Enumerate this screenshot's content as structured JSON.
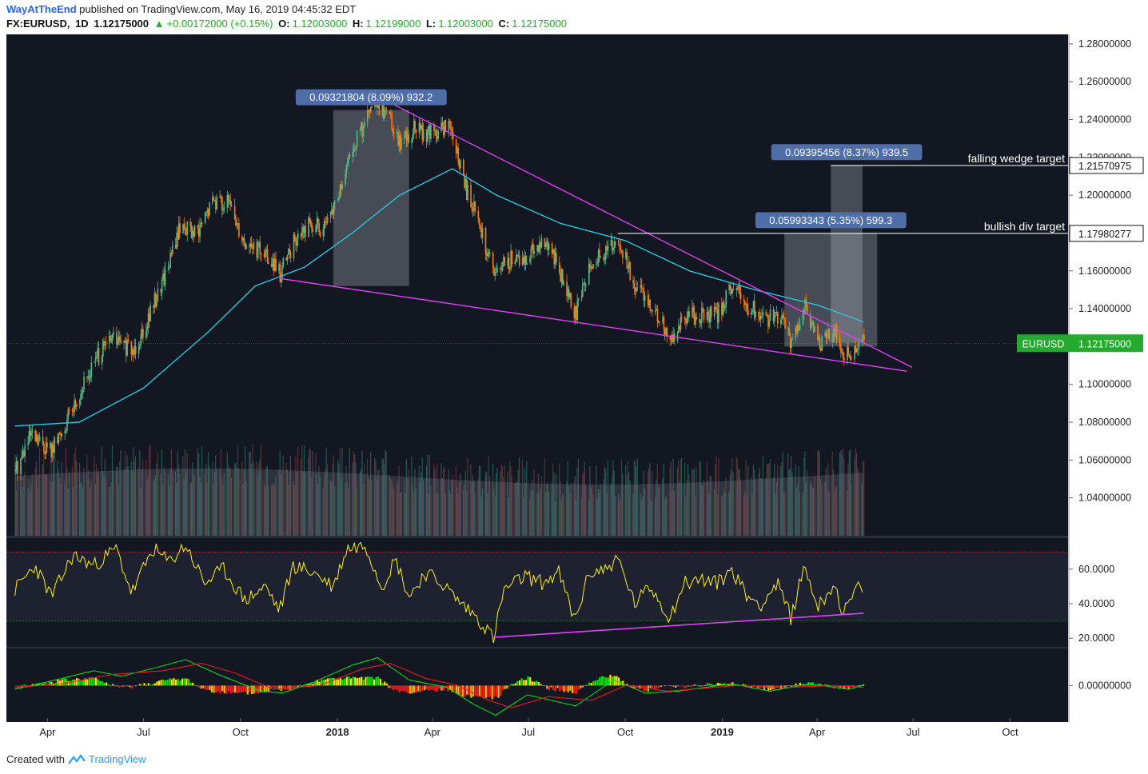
{
  "header": {
    "author": "WayAtTheEnd",
    "published_text": "published on TradingView.com, May 16, 2019 04:45:32 EDT",
    "symbol": "FX:EURUSD,",
    "interval": "1D",
    "last": "1.12175000",
    "change": "+0.00172000 (+0.15%)",
    "o_label": "O:",
    "o_value": "1.12003000",
    "h_label": "H:",
    "h_value": "1.12199000",
    "l_label": "L:",
    "l_value": "1.12003000",
    "c_label": "C:",
    "c_value": "1.12175000"
  },
  "footer": {
    "created_text": "Created with",
    "brand": "TradingView"
  },
  "colors": {
    "background": "#131722",
    "up": "#53b987",
    "down": "#f57f17",
    "ma": "#26c6da",
    "trendline": "#e040fb",
    "rsi": "#fff200",
    "macd": "#00e600",
    "signal": "#ff1a1a",
    "price_tag": "#22ab2c",
    "label_box": "#4f6ea8"
  },
  "chart_data": {
    "type": "candlestick",
    "symbol": "EURUSD",
    "interval": "1D",
    "last_price": "1.12175000",
    "price_axis": {
      "range": [
        1.02,
        1.285
      ],
      "ticks": [
        "1.28000000",
        "1.26000000",
        "1.24000000",
        "1.22000000",
        "1.20000000",
        "1.18000000",
        "1.16000000",
        "1.14000000",
        "1.12000000",
        "1.10000000",
        "1.08000000",
        "1.06000000",
        "1.04000000"
      ]
    },
    "time_axis": {
      "labels": [
        "Apr",
        "Jul",
        "Oct",
        "2018",
        "Apr",
        "Jul",
        "Oct",
        "2019",
        "Apr",
        "Jul",
        "Oct"
      ],
      "bold": [
        "2018",
        "2019"
      ]
    },
    "price_path": [
      [
        "2017-03-01",
        1.055
      ],
      [
        "2017-03-15",
        1.072
      ],
      [
        "2017-04-05",
        1.065
      ],
      [
        "2017-04-25",
        1.088
      ],
      [
        "2017-05-15",
        1.112
      ],
      [
        "2017-06-01",
        1.125
      ],
      [
        "2017-06-20",
        1.117
      ],
      [
        "2017-07-10",
        1.142
      ],
      [
        "2017-07-25",
        1.165
      ],
      [
        "2017-08-05",
        1.185
      ],
      [
        "2017-08-20",
        1.178
      ],
      [
        "2017-09-05",
        1.198
      ],
      [
        "2017-09-20",
        1.195
      ],
      [
        "2017-10-05",
        1.175
      ],
      [
        "2017-10-25",
        1.168
      ],
      [
        "2017-11-07",
        1.158
      ],
      [
        "2017-11-20",
        1.175
      ],
      [
        "2017-12-05",
        1.185
      ],
      [
        "2017-12-20",
        1.182
      ],
      [
        "2018-01-05",
        1.205
      ],
      [
        "2018-01-15",
        1.225
      ],
      [
        "2018-02-01",
        1.245
      ],
      [
        "2018-02-16",
        1.246
      ],
      [
        "2018-03-01",
        1.228
      ],
      [
        "2018-03-15",
        1.235
      ],
      [
        "2018-04-01",
        1.232
      ],
      [
        "2018-04-17",
        1.237
      ],
      [
        "2018-05-01",
        1.205
      ],
      [
        "2018-05-15",
        1.185
      ],
      [
        "2018-05-29",
        1.158
      ],
      [
        "2018-06-14",
        1.166
      ],
      [
        "2018-06-28",
        1.168
      ],
      [
        "2018-07-10",
        1.174
      ],
      [
        "2018-07-25",
        1.168
      ],
      [
        "2018-08-14",
        1.137
      ],
      [
        "2018-08-28",
        1.165
      ],
      [
        "2018-09-12",
        1.168
      ],
      [
        "2018-09-24",
        1.178
      ],
      [
        "2018-10-09",
        1.152
      ],
      [
        "2018-10-25",
        1.143
      ],
      [
        "2018-11-12",
        1.124
      ],
      [
        "2018-11-26",
        1.135
      ],
      [
        "2018-12-10",
        1.137
      ],
      [
        "2018-12-26",
        1.136
      ],
      [
        "2019-01-10",
        1.152
      ],
      [
        "2019-01-25",
        1.141
      ],
      [
        "2019-02-10",
        1.135
      ],
      [
        "2019-02-25",
        1.136
      ],
      [
        "2019-03-08",
        1.121
      ],
      [
        "2019-03-20",
        1.14
      ],
      [
        "2019-04-02",
        1.121
      ],
      [
        "2019-04-17",
        1.128
      ],
      [
        "2019-04-26",
        1.114
      ],
      [
        "2019-05-15",
        1.122
      ]
    ],
    "moving_average": [
      [
        "2017-03-01",
        1.078
      ],
      [
        "2017-05-01",
        1.08
      ],
      [
        "2017-07-01",
        1.098
      ],
      [
        "2017-09-01",
        1.128
      ],
      [
        "2017-10-15",
        1.152
      ],
      [
        "2017-12-01",
        1.162
      ],
      [
        "2018-01-15",
        1.18
      ],
      [
        "2018-03-01",
        1.2
      ],
      [
        "2018-04-20",
        1.214
      ],
      [
        "2018-06-01",
        1.2
      ],
      [
        "2018-08-01",
        1.185
      ],
      [
        "2018-10-01",
        1.176
      ],
      [
        "2018-12-01",
        1.16
      ],
      [
        "2019-02-01",
        1.15
      ],
      [
        "2019-04-01",
        1.142
      ],
      [
        "2019-05-15",
        1.133
      ]
    ],
    "trendlines": [
      {
        "from": [
          "2018-02-16",
          1.25
        ],
        "to": [
          "2019-06-30",
          1.109
        ]
      },
      {
        "from": [
          "2017-11-07",
          1.156
        ],
        "to": [
          "2019-06-25",
          1.107
        ]
      }
    ],
    "measurements": [
      {
        "label": "0.09321804 (8.09%) 932.2",
        "from": "2017-12-28",
        "to": "2018-03-10",
        "low": 1.152,
        "high": 1.245
      },
      {
        "label": "0.05993343 (5.35%) 599.3",
        "from": "2019-03-01",
        "to": "2019-05-28",
        "low": 1.12,
        "high": 1.18
      },
      {
        "label": "0.09395456 (8.37%) 939.5",
        "from": "2019-04-14",
        "to": "2019-05-14",
        "low": 1.122,
        "high": 1.216
      }
    ],
    "target_lines": [
      {
        "label": "falling wedge target",
        "value": 1.2157,
        "tag": "1.21570975",
        "from": "2019-04-14"
      },
      {
        "label": "bullish div target",
        "value": 1.1798,
        "tag": "1.17980277",
        "from": "2018-09-24"
      }
    ],
    "rsi": {
      "levels": [
        70,
        30
      ],
      "ticks": [
        "60.0000",
        "40.0000",
        "20.0000"
      ],
      "range": [
        15,
        78
      ],
      "path": [
        [
          "2017-03-01",
          48
        ],
        [
          "2017-03-20",
          62
        ],
        [
          "2017-04-05",
          44
        ],
        [
          "2017-04-25",
          68
        ],
        [
          "2017-05-15",
          62
        ],
        [
          "2017-06-05",
          72
        ],
        [
          "2017-06-20",
          46
        ],
        [
          "2017-07-10",
          72
        ],
        [
          "2017-07-25",
          64
        ],
        [
          "2017-08-10",
          74
        ],
        [
          "2017-08-28",
          52
        ],
        [
          "2017-09-15",
          60
        ],
        [
          "2017-10-05",
          42
        ],
        [
          "2017-10-25",
          50
        ],
        [
          "2017-11-07",
          36
        ],
        [
          "2017-11-20",
          62
        ],
        [
          "2017-12-10",
          58
        ],
        [
          "2017-12-28",
          50
        ],
        [
          "2018-01-10",
          72
        ],
        [
          "2018-01-28",
          74
        ],
        [
          "2018-02-12",
          50
        ],
        [
          "2018-02-25",
          66
        ],
        [
          "2018-03-10",
          44
        ],
        [
          "2018-03-25",
          58
        ],
        [
          "2018-04-10",
          52
        ],
        [
          "2018-04-25",
          42
        ],
        [
          "2018-05-10",
          34
        ],
        [
          "2018-05-22",
          26
        ],
        [
          "2018-05-29",
          20
        ],
        [
          "2018-06-08",
          48
        ],
        [
          "2018-06-28",
          56
        ],
        [
          "2018-07-15",
          52
        ],
        [
          "2018-07-30",
          58
        ],
        [
          "2018-08-14",
          30
        ],
        [
          "2018-08-28",
          58
        ],
        [
          "2018-09-12",
          60
        ],
        [
          "2018-09-24",
          66
        ],
        [
          "2018-10-10",
          40
        ],
        [
          "2018-10-25",
          50
        ],
        [
          "2018-11-12",
          32
        ],
        [
          "2018-11-26",
          52
        ],
        [
          "2018-12-12",
          54
        ],
        [
          "2018-12-28",
          52
        ],
        [
          "2019-01-10",
          60
        ],
        [
          "2019-01-25",
          44
        ],
        [
          "2019-02-08",
          40
        ],
        [
          "2019-02-22",
          52
        ],
        [
          "2019-03-07",
          32
        ],
        [
          "2019-03-20",
          62
        ],
        [
          "2019-04-02",
          38
        ],
        [
          "2019-04-17",
          52
        ],
        [
          "2019-04-26",
          34
        ],
        [
          "2019-05-08",
          48
        ],
        [
          "2019-05-15",
          50
        ]
      ],
      "divergence": {
        "from": [
          "2018-05-29",
          20.5
        ],
        "to": [
          "2019-05-15",
          34.5
        ]
      }
    },
    "macd": {
      "ticks": [
        "0.00000000"
      ],
      "range": [
        -0.0175,
        0.02
      ],
      "macd_path": [
        [
          "2017-03-01",
          -0.002
        ],
        [
          "2017-04-01",
          0.002
        ],
        [
          "2017-05-15",
          0.008
        ],
        [
          "2017-06-10",
          0.005
        ],
        [
          "2017-07-15",
          0.01
        ],
        [
          "2017-08-10",
          0.014
        ],
        [
          "2017-09-10",
          0.006
        ],
        [
          "2017-10-20",
          -0.003
        ],
        [
          "2017-11-10",
          -0.004
        ],
        [
          "2017-12-10",
          0.002
        ],
        [
          "2018-01-15",
          0.011
        ],
        [
          "2018-02-08",
          0.015
        ],
        [
          "2018-03-10",
          0.003
        ],
        [
          "2018-04-15",
          -0.001
        ],
        [
          "2018-05-10",
          -0.01
        ],
        [
          "2018-05-31",
          -0.016
        ],
        [
          "2018-06-30",
          -0.005
        ],
        [
          "2018-08-15",
          -0.011
        ],
        [
          "2018-09-20",
          0.003
        ],
        [
          "2018-10-20",
          -0.004
        ],
        [
          "2018-11-20",
          -0.003
        ],
        [
          "2019-01-10",
          0.001
        ],
        [
          "2019-02-15",
          -0.003
        ],
        [
          "2019-03-25",
          0.001
        ],
        [
          "2019-04-30",
          -0.002
        ],
        [
          "2019-05-15",
          0.0
        ]
      ],
      "signal_path": [
        [
          "2017-03-01",
          -0.001
        ],
        [
          "2017-04-15",
          0.001
        ],
        [
          "2017-06-01",
          0.006
        ],
        [
          "2017-07-20",
          0.008
        ],
        [
          "2017-08-25",
          0.012
        ],
        [
          "2017-09-25",
          0.007
        ],
        [
          "2017-11-01",
          -0.002
        ],
        [
          "2017-12-15",
          0.0
        ],
        [
          "2018-01-25",
          0.009
        ],
        [
          "2018-02-20",
          0.012
        ],
        [
          "2018-03-25",
          0.004
        ],
        [
          "2018-04-25",
          0.0
        ],
        [
          "2018-05-25",
          -0.008
        ],
        [
          "2018-06-15",
          -0.012
        ],
        [
          "2018-07-20",
          -0.006
        ],
        [
          "2018-08-30",
          -0.008
        ],
        [
          "2018-10-01",
          0.0
        ],
        [
          "2018-11-10",
          -0.003
        ],
        [
          "2019-01-15",
          0.0
        ],
        [
          "2019-03-01",
          -0.001
        ],
        [
          "2019-04-15",
          0.0
        ],
        [
          "2019-05-15",
          -0.001
        ]
      ]
    }
  }
}
